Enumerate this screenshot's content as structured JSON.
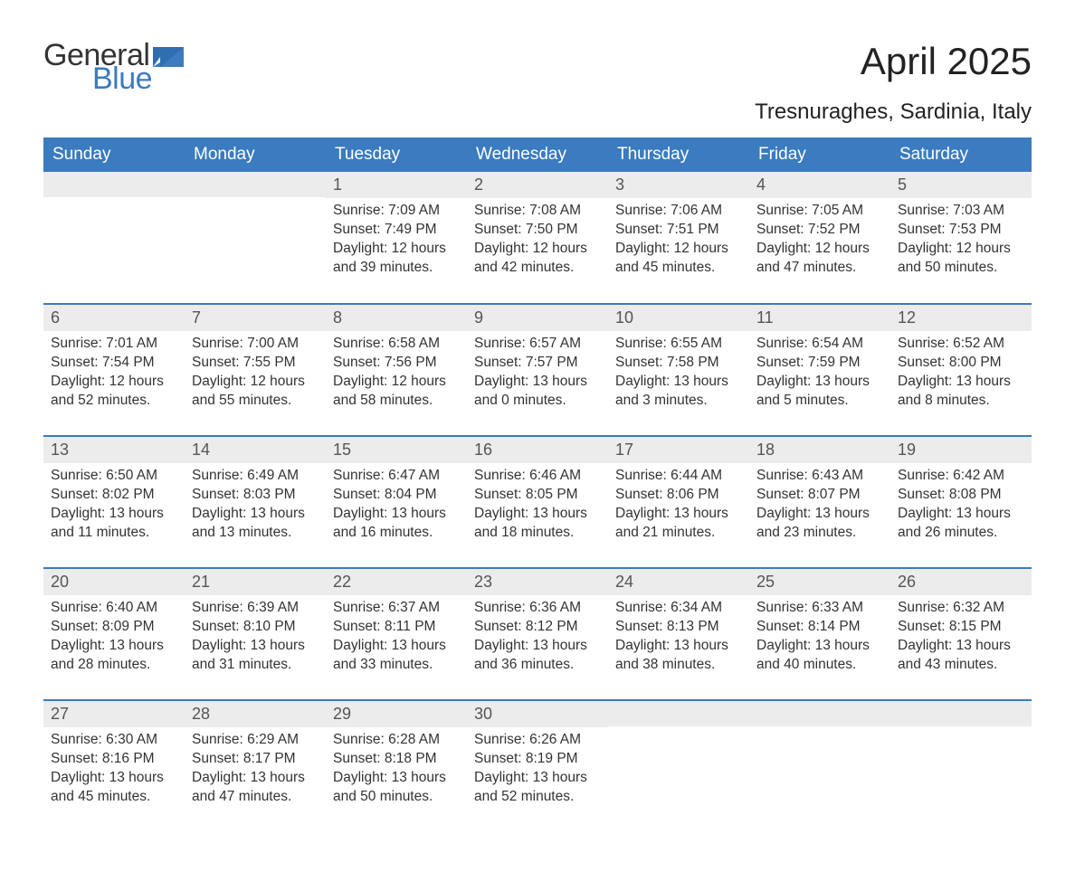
{
  "logo": {
    "word1": "General",
    "word2": "Blue"
  },
  "title": "April 2025",
  "subtitle": "Tresnuraghes, Sardinia, Italy",
  "header_bg": "#3b7bbf",
  "header_fg": "#ffffff",
  "daynum_bg": "#ececec",
  "week_sep_color": "#3b7bbf",
  "text_color": "#333333",
  "weekdays": [
    "Sunday",
    "Monday",
    "Tuesday",
    "Wednesday",
    "Thursday",
    "Friday",
    "Saturday"
  ],
  "weeks": [
    [
      null,
      null,
      {
        "n": "1",
        "sr": "7:09 AM",
        "ss": "7:49 PM",
        "dl": "12 hours and 39 minutes."
      },
      {
        "n": "2",
        "sr": "7:08 AM",
        "ss": "7:50 PM",
        "dl": "12 hours and 42 minutes."
      },
      {
        "n": "3",
        "sr": "7:06 AM",
        "ss": "7:51 PM",
        "dl": "12 hours and 45 minutes."
      },
      {
        "n": "4",
        "sr": "7:05 AM",
        "ss": "7:52 PM",
        "dl": "12 hours and 47 minutes."
      },
      {
        "n": "5",
        "sr": "7:03 AM",
        "ss": "7:53 PM",
        "dl": "12 hours and 50 minutes."
      }
    ],
    [
      {
        "n": "6",
        "sr": "7:01 AM",
        "ss": "7:54 PM",
        "dl": "12 hours and 52 minutes."
      },
      {
        "n": "7",
        "sr": "7:00 AM",
        "ss": "7:55 PM",
        "dl": "12 hours and 55 minutes."
      },
      {
        "n": "8",
        "sr": "6:58 AM",
        "ss": "7:56 PM",
        "dl": "12 hours and 58 minutes."
      },
      {
        "n": "9",
        "sr": "6:57 AM",
        "ss": "7:57 PM",
        "dl": "13 hours and 0 minutes."
      },
      {
        "n": "10",
        "sr": "6:55 AM",
        "ss": "7:58 PM",
        "dl": "13 hours and 3 minutes."
      },
      {
        "n": "11",
        "sr": "6:54 AM",
        "ss": "7:59 PM",
        "dl": "13 hours and 5 minutes."
      },
      {
        "n": "12",
        "sr": "6:52 AM",
        "ss": "8:00 PM",
        "dl": "13 hours and 8 minutes."
      }
    ],
    [
      {
        "n": "13",
        "sr": "6:50 AM",
        "ss": "8:02 PM",
        "dl": "13 hours and 11 minutes."
      },
      {
        "n": "14",
        "sr": "6:49 AM",
        "ss": "8:03 PM",
        "dl": "13 hours and 13 minutes."
      },
      {
        "n": "15",
        "sr": "6:47 AM",
        "ss": "8:04 PM",
        "dl": "13 hours and 16 minutes."
      },
      {
        "n": "16",
        "sr": "6:46 AM",
        "ss": "8:05 PM",
        "dl": "13 hours and 18 minutes."
      },
      {
        "n": "17",
        "sr": "6:44 AM",
        "ss": "8:06 PM",
        "dl": "13 hours and 21 minutes."
      },
      {
        "n": "18",
        "sr": "6:43 AM",
        "ss": "8:07 PM",
        "dl": "13 hours and 23 minutes."
      },
      {
        "n": "19",
        "sr": "6:42 AM",
        "ss": "8:08 PM",
        "dl": "13 hours and 26 minutes."
      }
    ],
    [
      {
        "n": "20",
        "sr": "6:40 AM",
        "ss": "8:09 PM",
        "dl": "13 hours and 28 minutes."
      },
      {
        "n": "21",
        "sr": "6:39 AM",
        "ss": "8:10 PM",
        "dl": "13 hours and 31 minutes."
      },
      {
        "n": "22",
        "sr": "6:37 AM",
        "ss": "8:11 PM",
        "dl": "13 hours and 33 minutes."
      },
      {
        "n": "23",
        "sr": "6:36 AM",
        "ss": "8:12 PM",
        "dl": "13 hours and 36 minutes."
      },
      {
        "n": "24",
        "sr": "6:34 AM",
        "ss": "8:13 PM",
        "dl": "13 hours and 38 minutes."
      },
      {
        "n": "25",
        "sr": "6:33 AM",
        "ss": "8:14 PM",
        "dl": "13 hours and 40 minutes."
      },
      {
        "n": "26",
        "sr": "6:32 AM",
        "ss": "8:15 PM",
        "dl": "13 hours and 43 minutes."
      }
    ],
    [
      {
        "n": "27",
        "sr": "6:30 AM",
        "ss": "8:16 PM",
        "dl": "13 hours and 45 minutes."
      },
      {
        "n": "28",
        "sr": "6:29 AM",
        "ss": "8:17 PM",
        "dl": "13 hours and 47 minutes."
      },
      {
        "n": "29",
        "sr": "6:28 AM",
        "ss": "8:18 PM",
        "dl": "13 hours and 50 minutes."
      },
      {
        "n": "30",
        "sr": "6:26 AM",
        "ss": "8:19 PM",
        "dl": "13 hours and 52 minutes."
      },
      null,
      null,
      null
    ]
  ],
  "labels": {
    "sunrise": "Sunrise: ",
    "sunset": "Sunset: ",
    "daylight": "Daylight: "
  }
}
